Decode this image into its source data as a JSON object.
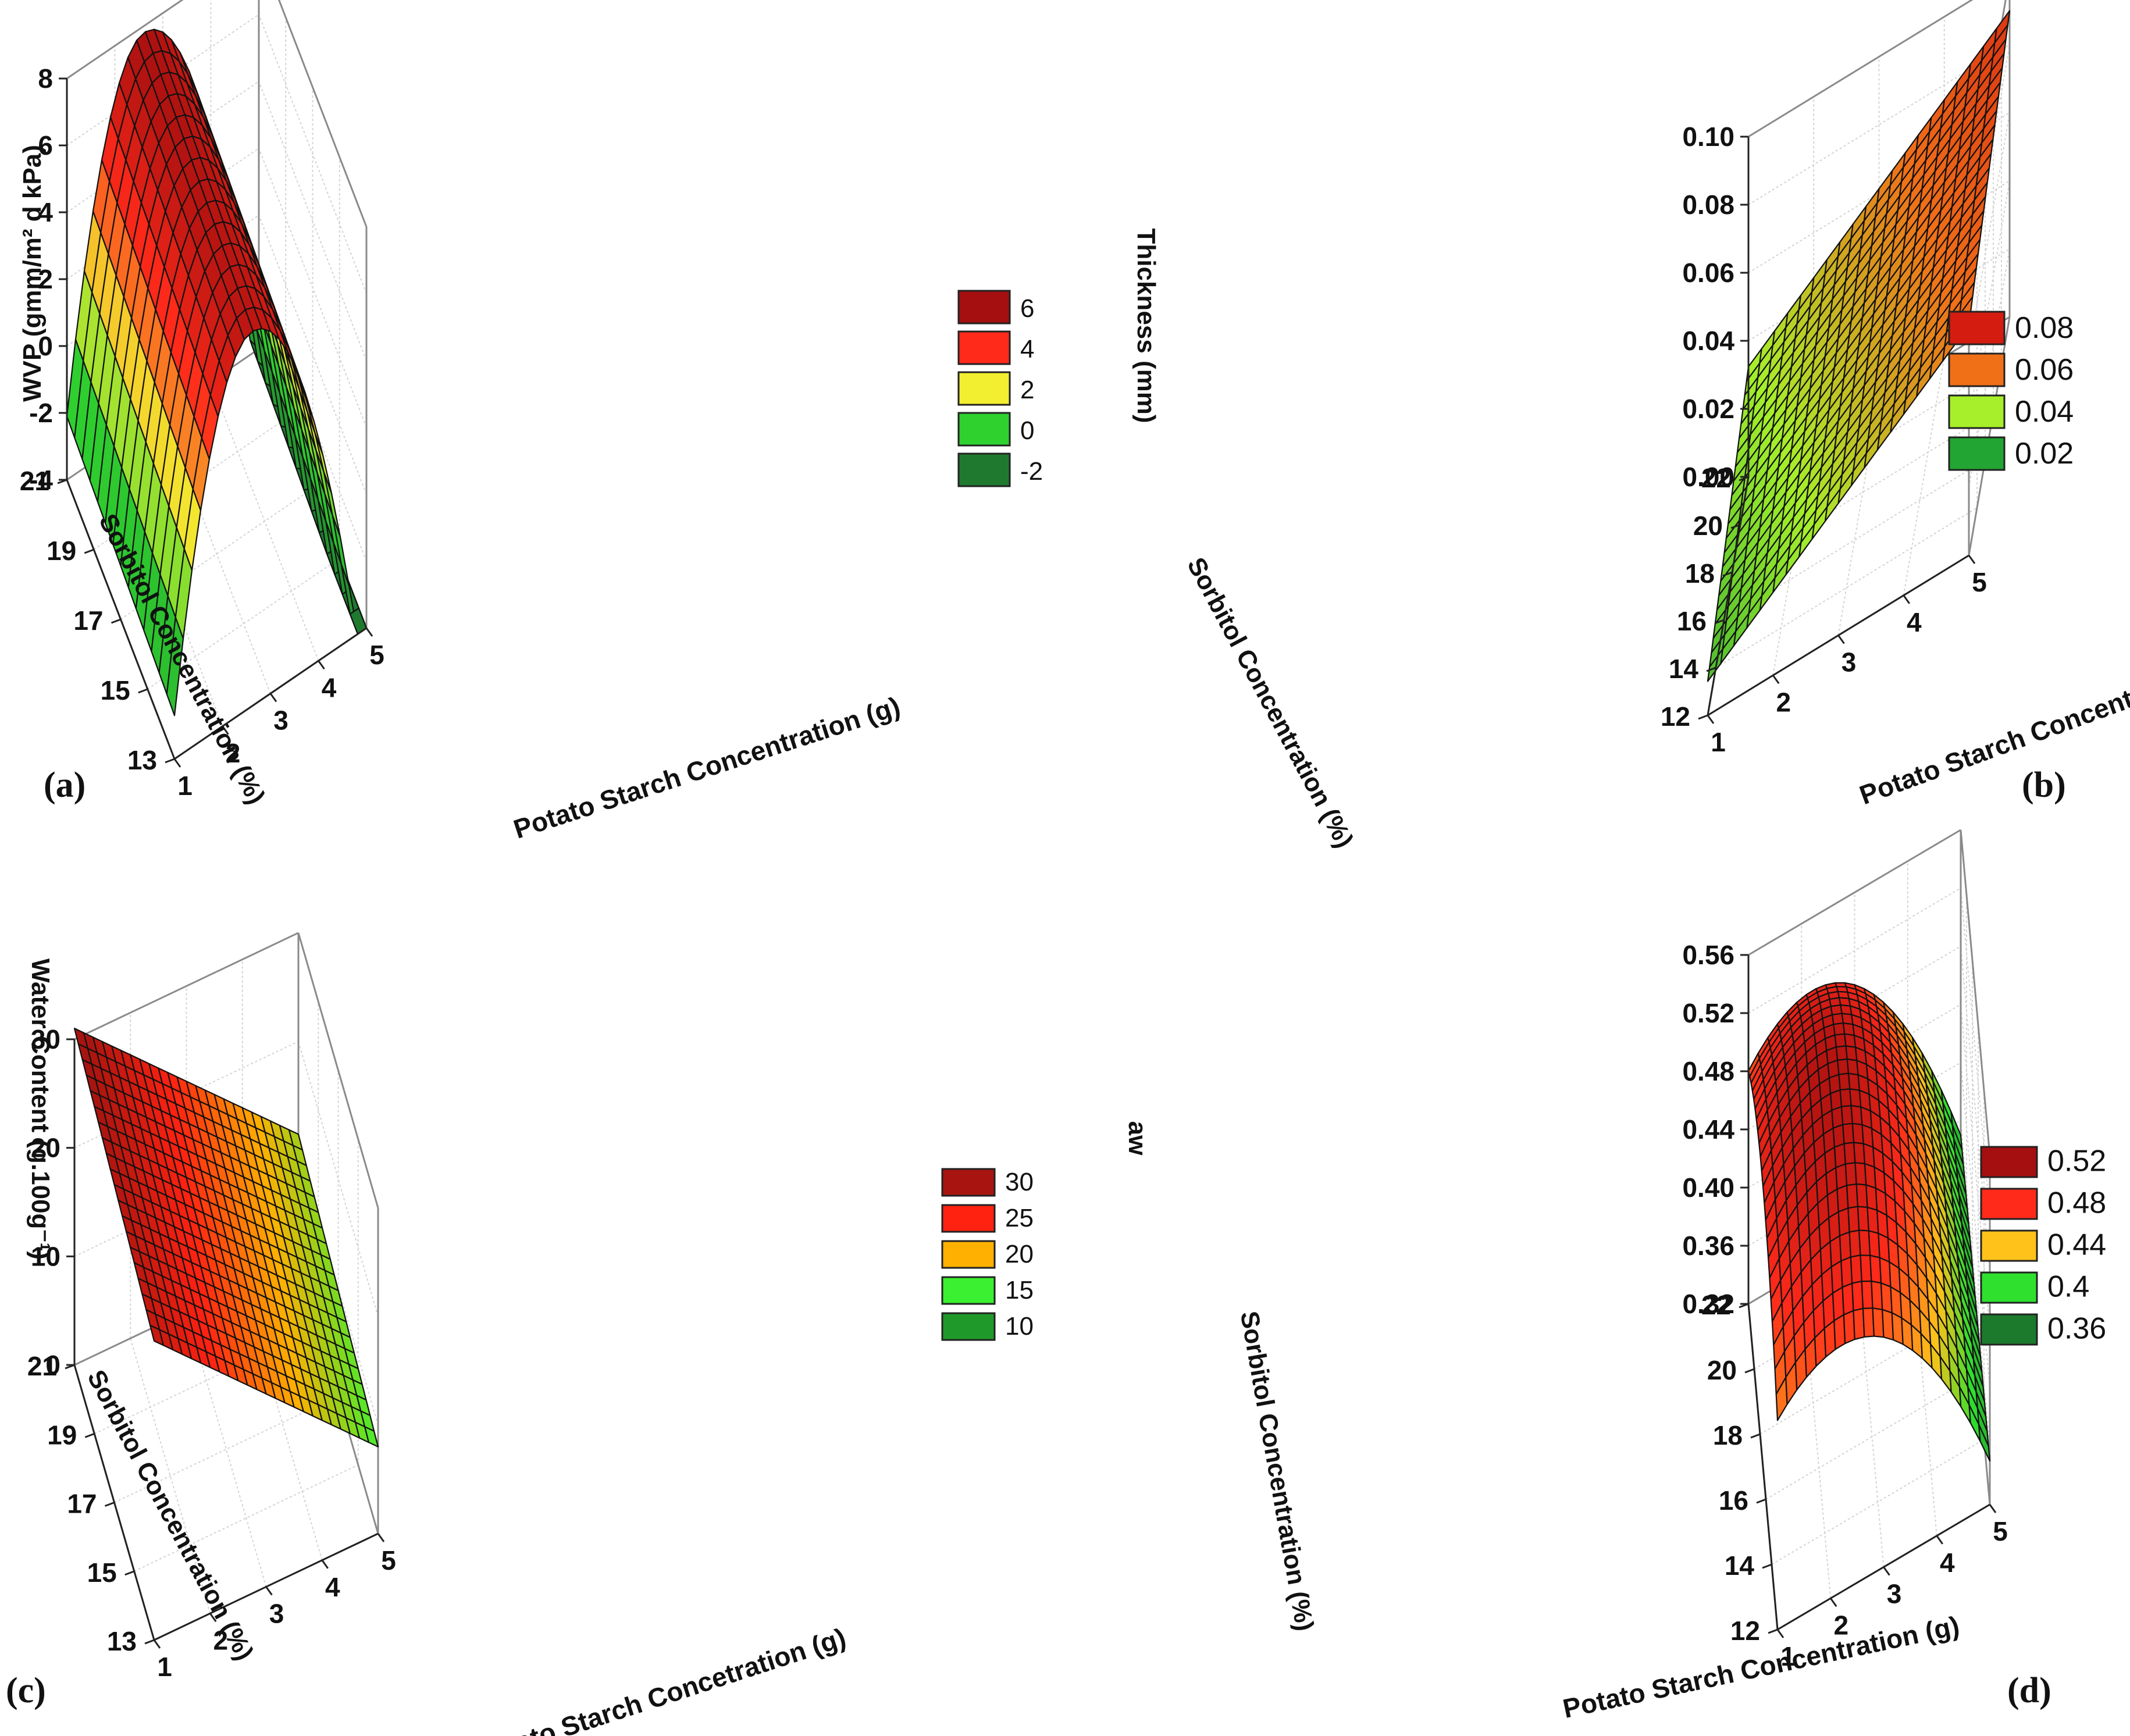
{
  "chart_data": [
    {
      "id": "a",
      "type": "surface3d",
      "panel_label": "(a)",
      "zlabel": "WVP (gmm/m² d kPa)",
      "xlabel": "Potato Starch Concentration (g)",
      "ylabel": "Sorbitol Concentration (%)",
      "x_ticks": [
        "1",
        "2",
        "3",
        "4",
        "5"
      ],
      "y_ticks": [
        "13",
        "15",
        "17",
        "19",
        "21"
      ],
      "z_ticks": [
        "-4",
        "-2",
        "0",
        "2",
        "4",
        "6",
        "8"
      ],
      "xlim": [
        1,
        5
      ],
      "ylim": [
        13,
        21
      ],
      "zlim": [
        -4,
        8
      ],
      "legend": [
        {
          "label": "6",
          "color": "#a50f0f"
        },
        {
          "label": "4",
          "color": "#ff2a1a"
        },
        {
          "label": "2",
          "color": "#f2ee30"
        },
        {
          "label": "0",
          "color": "#2fd12f"
        },
        {
          "label": "-2",
          "color": "#1f7a30"
        }
      ],
      "surface": {
        "shape": "quadratic-in-x",
        "z_at_x1": -2.4,
        "z_peak": 7.5,
        "x_peak": 2.6,
        "z_at_x5": -5.8
      }
    },
    {
      "id": "b",
      "type": "surface3d",
      "panel_label": "(b)",
      "zlabel": "Thickness (mm)",
      "xlabel": "Potato Starch Concentration (g)",
      "ylabel": "Sorbitol Concentration (%)",
      "x_ticks": [
        "1",
        "2",
        "3",
        "4",
        "5"
      ],
      "y_ticks": [
        "12",
        "14",
        "16",
        "18",
        "20",
        "22"
      ],
      "z_ticks": [
        "0.00",
        "0.02",
        "0.04",
        "0.06",
        "0.08",
        "0.10"
      ],
      "xlim": [
        1,
        5
      ],
      "ylim": [
        12,
        22
      ],
      "zlim": [
        0.0,
        0.1
      ],
      "legend": [
        {
          "label": "0.08",
          "color": "#d41c10"
        },
        {
          "label": "0.06",
          "color": "#f07018"
        },
        {
          "label": "0.04",
          "color": "#a6ef2a"
        },
        {
          "label": "0.02",
          "color": "#22a532"
        }
      ],
      "surface": {
        "shape": "plane",
        "z_min": 0.01,
        "z_max": 0.09
      }
    },
    {
      "id": "c",
      "type": "surface3d",
      "panel_label": "(c)",
      "zlabel": "Water Content (g.100g⁻¹)",
      "xlabel": "Potato Starch Concetration (g)",
      "ylabel": "Sorbitol Concentration (%)",
      "x_ticks": [
        "1",
        "2",
        "3",
        "4",
        "5"
      ],
      "y_ticks": [
        "13",
        "15",
        "17",
        "19",
        "21"
      ],
      "z_ticks": [
        "0",
        "10",
        "20",
        "30"
      ],
      "xlim": [
        1,
        5
      ],
      "ylim": [
        13,
        21
      ],
      "zlim": [
        0,
        30
      ],
      "legend": [
        {
          "label": "30",
          "color": "#a8140f"
        },
        {
          "label": "25",
          "color": "#ff2211"
        },
        {
          "label": "20",
          "color": "#ffb000"
        },
        {
          "label": "15",
          "color": "#3af030"
        },
        {
          "label": "10",
          "color": "#1f9a2a"
        }
      ],
      "surface": {
        "shape": "plane",
        "z_min": 8,
        "z_max": 31
      }
    },
    {
      "id": "d",
      "type": "surface3d",
      "panel_label": "(d)",
      "zlabel": "aw",
      "xlabel": "Potato Starch Concentration (g)",
      "ylabel": "Sorbitol Concentration (%)",
      "x_ticks": [
        "1",
        "2",
        "3",
        "4",
        "5"
      ],
      "y_ticks": [
        "12",
        "14",
        "16",
        "18",
        "20",
        "22"
      ],
      "z_ticks": [
        "0.32",
        "0.36",
        "0.40",
        "0.44",
        "0.48",
        "0.52",
        "0.56"
      ],
      "xlim": [
        1,
        5
      ],
      "ylim": [
        12,
        22
      ],
      "zlim": [
        0.32,
        0.56
      ],
      "legend": [
        {
          "label": "0.52",
          "color": "#a50f0f"
        },
        {
          "label": "0.48",
          "color": "#ff2a1a"
        },
        {
          "label": "0.44",
          "color": "#ffc21a"
        },
        {
          "label": "0.4",
          "color": "#2fe02f"
        },
        {
          "label": "0.36",
          "color": "#1b7a2c"
        }
      ],
      "surface": {
        "shape": "quadratic",
        "z_peak": 0.55,
        "z_low": 0.35
      }
    }
  ]
}
